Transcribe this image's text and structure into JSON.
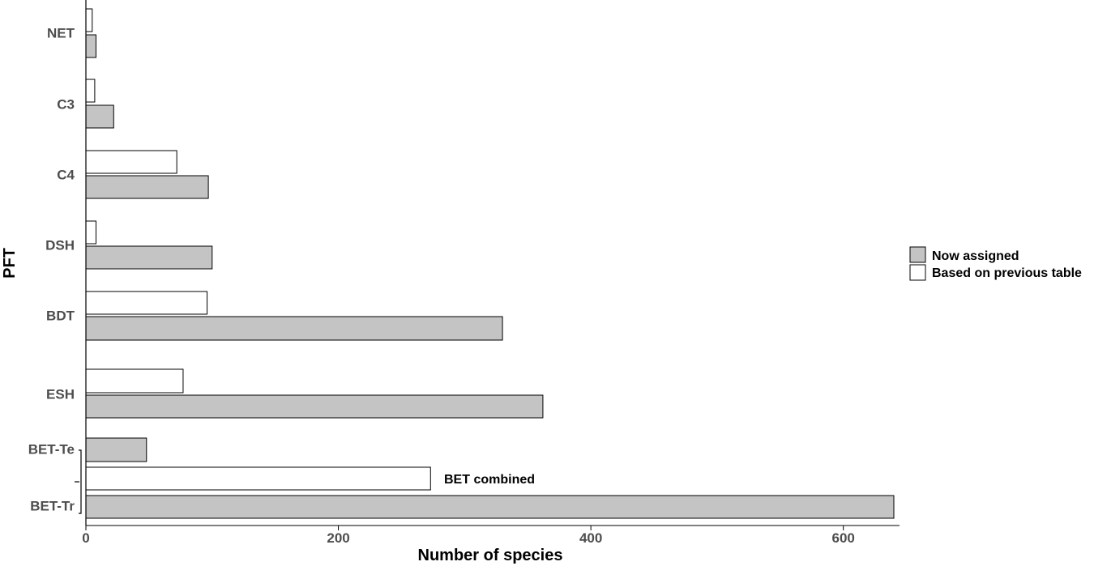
{
  "chart_data": {
    "type": "bar",
    "orientation": "horizontal",
    "xlabel": "Number of species",
    "ylabel": "PFT",
    "xlim": [
      0,
      640
    ],
    "xticks": [
      0,
      200,
      400,
      600
    ],
    "grid": false,
    "legend_position": "right",
    "categories": [
      "NET",
      "C3",
      "C4",
      "DSH",
      "BDT",
      "ESH",
      "BET-Te",
      "BET-Tr"
    ],
    "series": [
      {
        "name": "Now assigned",
        "color": "#c4c4c4",
        "values": [
          8,
          22,
          97,
          100,
          330,
          362,
          48,
          640
        ]
      },
      {
        "name": "Based on previous table",
        "color": "#ffffff",
        "values": [
          5,
          7,
          72,
          8,
          96,
          77,
          null,
          null
        ]
      }
    ],
    "combined": {
      "label": "BET combined",
      "value": 273,
      "series": "Based on previous table",
      "groups": [
        "BET-Te",
        "BET-Tr"
      ]
    }
  }
}
